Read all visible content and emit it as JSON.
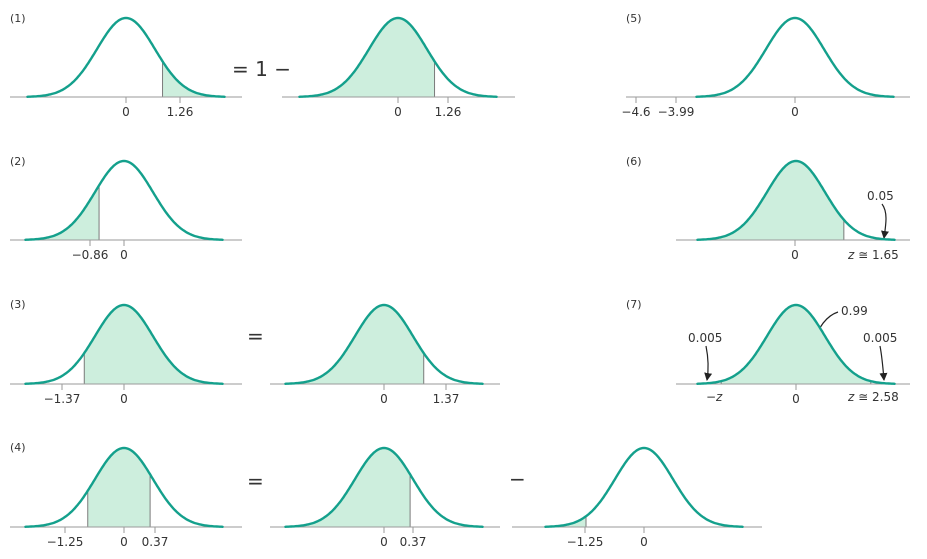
{
  "colors": {
    "curve": "#14a08c",
    "fill": "#cdeedd",
    "axis": "#9a9a9a",
    "text": "#333333"
  },
  "panels": [
    {
      "tag": "(1)",
      "op": "= 1 −"
    },
    {
      "tag": "(2)"
    },
    {
      "tag": "(3)",
      "op": "="
    },
    {
      "tag": "(4)",
      "op1": "=",
      "op2": "−"
    },
    {
      "tag": "(5)"
    },
    {
      "tag": "(6)",
      "area_label": "0.05"
    },
    {
      "tag": "(7)",
      "area_center": "0.99",
      "area_left": "0.005",
      "area_right": "0.005"
    }
  ],
  "ticks": {
    "p1a": [
      "0",
      "1.26"
    ],
    "p1b": [
      "0",
      "1.26"
    ],
    "p2": [
      "−0.86",
      "0"
    ],
    "p3a": [
      "−1.37",
      "0"
    ],
    "p3b": [
      "0",
      "1.37"
    ],
    "p4a": [
      "−1.25",
      "0",
      "0.37"
    ],
    "p4b": [
      "0",
      "0.37"
    ],
    "p4c": [
      "−1.25",
      "0"
    ],
    "p5": [
      "−4.6",
      "−3.99",
      "0"
    ],
    "p6": [
      "0"
    ],
    "p6_z": {
      "var": "z",
      "rest": " ≅ 1.65"
    },
    "p7_left": {
      "var": "−z"
    },
    "p7": [
      "0"
    ],
    "p7_z": {
      "var": "z",
      "rest": " ≅ 2.58"
    }
  }
}
